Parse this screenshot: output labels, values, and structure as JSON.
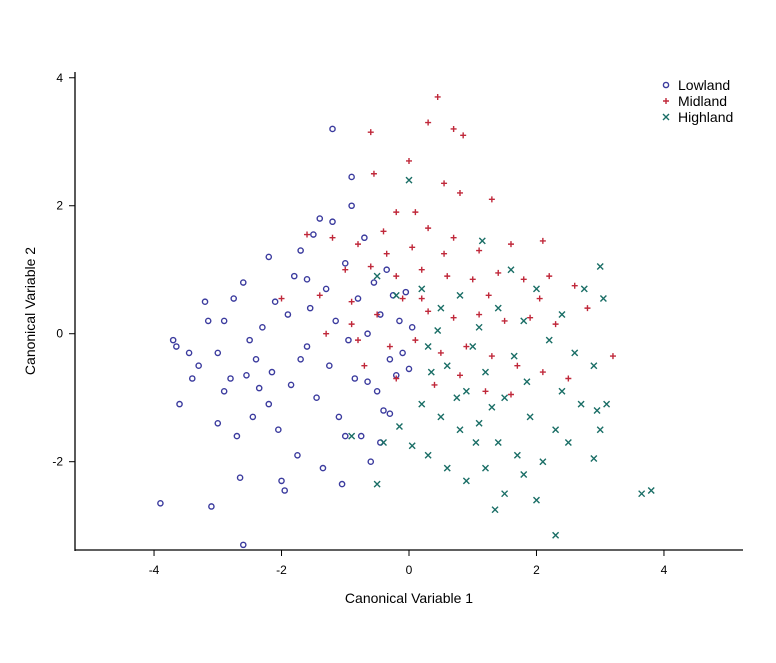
{
  "chart_data": {
    "type": "scatter",
    "title": "",
    "xlabel": "Canonical Variable 1",
    "ylabel": "Canonical Variable 2",
    "xlim": [
      -5.24,
      5.24
    ],
    "ylim": [
      -3.38,
      4.09
    ],
    "xticks": [
      -4,
      -2,
      0,
      2,
      4
    ],
    "yticks": [
      -2,
      0,
      2,
      4
    ],
    "grid": false,
    "legend_position": "top-right",
    "series": [
      {
        "name": "Lowland",
        "marker": "circle",
        "color": "#3b3b9e",
        "points": [
          [
            -3.9,
            -2.65
          ],
          [
            -3.1,
            -2.7
          ],
          [
            -2.6,
            -3.3
          ],
          [
            -1.2,
            3.2
          ],
          [
            -0.9,
            2.45
          ],
          [
            -3.7,
            -0.1
          ],
          [
            -3.65,
            -0.2
          ],
          [
            -3.6,
            -1.1
          ],
          [
            -3.4,
            -0.7
          ],
          [
            -3.3,
            -0.5
          ],
          [
            -3.2,
            0.5
          ],
          [
            -3.15,
            0.2
          ],
          [
            -3.0,
            -0.3
          ],
          [
            -3.0,
            -1.4
          ],
          [
            -2.9,
            -0.9
          ],
          [
            -2.8,
            -0.7
          ],
          [
            -2.75,
            0.55
          ],
          [
            -2.7,
            -1.6
          ],
          [
            -2.65,
            -2.25
          ],
          [
            -2.6,
            0.8
          ],
          [
            -2.5,
            -0.1
          ],
          [
            -2.45,
            -1.3
          ],
          [
            -2.4,
            -0.4
          ],
          [
            -2.3,
            0.1
          ],
          [
            -2.2,
            1.2
          ],
          [
            -2.15,
            -0.6
          ],
          [
            -2.1,
            0.5
          ],
          [
            -2.05,
            -1.5
          ],
          [
            -2.0,
            -2.3
          ],
          [
            -1.95,
            -2.45
          ],
          [
            -1.9,
            0.3
          ],
          [
            -1.85,
            -0.8
          ],
          [
            -1.8,
            0.9
          ],
          [
            -1.75,
            -1.9
          ],
          [
            -1.7,
            1.3
          ],
          [
            -1.6,
            -0.2
          ],
          [
            -1.55,
            0.4
          ],
          [
            -1.5,
            1.55
          ],
          [
            -1.45,
            -1.0
          ],
          [
            -1.4,
            1.8
          ],
          [
            -1.35,
            -2.1
          ],
          [
            -1.3,
            0.7
          ],
          [
            -1.25,
            -0.5
          ],
          [
            -1.2,
            1.75
          ],
          [
            -1.15,
            0.2
          ],
          [
            -1.1,
            -1.3
          ],
          [
            -1.05,
            -2.35
          ],
          [
            -1.0,
            1.1
          ],
          [
            -0.95,
            -0.1
          ],
          [
            -0.9,
            2.0
          ],
          [
            -0.85,
            -0.7
          ],
          [
            -0.8,
            0.55
          ],
          [
            -0.75,
            -1.6
          ],
          [
            -0.7,
            1.5
          ],
          [
            -0.65,
            0.0
          ],
          [
            -0.6,
            -2.0
          ],
          [
            -0.55,
            0.8
          ],
          [
            -0.5,
            -0.9
          ],
          [
            -0.45,
            0.3
          ],
          [
            -0.4,
            -1.2
          ],
          [
            -0.35,
            1.0
          ],
          [
            -0.3,
            -0.4
          ],
          [
            -0.25,
            0.6
          ],
          [
            -0.2,
            -0.65
          ],
          [
            -0.15,
            0.2
          ],
          [
            -0.1,
            -0.3
          ],
          [
            -0.05,
            0.65
          ],
          [
            0.0,
            -0.55
          ],
          [
            0.05,
            0.1
          ],
          [
            -0.45,
            -1.7
          ],
          [
            -2.9,
            0.2
          ],
          [
            -3.45,
            -0.3
          ],
          [
            -2.35,
            -0.85
          ],
          [
            -1.7,
            -0.4
          ],
          [
            -2.55,
            -0.65
          ],
          [
            -0.65,
            -0.75
          ],
          [
            -1.0,
            -1.6
          ],
          [
            -0.3,
            -1.25
          ],
          [
            -1.6,
            0.85
          ],
          [
            -2.2,
            -1.1
          ]
        ]
      },
      {
        "name": "Midland",
        "marker": "plus",
        "color": "#c0283a",
        "points": [
          [
            0.45,
            3.7
          ],
          [
            0.3,
            3.3
          ],
          [
            0.7,
            3.2
          ],
          [
            -0.6,
            3.15
          ],
          [
            0.85,
            3.1
          ],
          [
            0.0,
            2.7
          ],
          [
            0.55,
            2.35
          ],
          [
            -0.55,
            2.5
          ],
          [
            0.8,
            2.2
          ],
          [
            1.3,
            2.1
          ],
          [
            -0.2,
            1.9
          ],
          [
            0.1,
            1.9
          ],
          [
            -1.6,
            1.55
          ],
          [
            -1.2,
            1.5
          ],
          [
            -0.8,
            1.4
          ],
          [
            -0.4,
            1.6
          ],
          [
            0.3,
            1.65
          ],
          [
            0.7,
            1.5
          ],
          [
            1.1,
            1.3
          ],
          [
            1.6,
            1.4
          ],
          [
            2.1,
            1.45
          ],
          [
            -1.0,
            1.0
          ],
          [
            -0.6,
            1.05
          ],
          [
            -0.2,
            0.9
          ],
          [
            0.2,
            1.0
          ],
          [
            0.6,
            0.9
          ],
          [
            1.0,
            0.85
          ],
          [
            1.4,
            0.95
          ],
          [
            1.8,
            0.85
          ],
          [
            2.2,
            0.9
          ],
          [
            2.6,
            0.75
          ],
          [
            -1.4,
            0.6
          ],
          [
            -0.9,
            0.5
          ],
          [
            -0.5,
            0.3
          ],
          [
            -0.1,
            0.55
          ],
          [
            0.3,
            0.35
          ],
          [
            0.7,
            0.25
          ],
          [
            1.1,
            0.3
          ],
          [
            1.5,
            0.2
          ],
          [
            1.9,
            0.25
          ],
          [
            2.3,
            0.15
          ],
          [
            2.8,
            0.4
          ],
          [
            3.2,
            -0.35
          ],
          [
            -1.3,
            0.0
          ],
          [
            -0.8,
            -0.1
          ],
          [
            -0.3,
            -0.2
          ],
          [
            0.1,
            -0.1
          ],
          [
            0.5,
            -0.3
          ],
          [
            0.9,
            -0.2
          ],
          [
            1.3,
            -0.35
          ],
          [
            1.7,
            -0.5
          ],
          [
            2.1,
            -0.6
          ],
          [
            2.5,
            -0.7
          ],
          [
            -0.7,
            -0.5
          ],
          [
            -0.2,
            -0.7
          ],
          [
            0.4,
            -0.8
          ],
          [
            0.8,
            -0.65
          ],
          [
            1.2,
            -0.9
          ],
          [
            1.6,
            -0.95
          ],
          [
            -2.0,
            0.55
          ],
          [
            -0.9,
            0.15
          ],
          [
            0.2,
            0.55
          ],
          [
            1.25,
            0.6
          ],
          [
            0.05,
            1.35
          ],
          [
            -0.35,
            1.25
          ],
          [
            0.55,
            1.25
          ],
          [
            2.05,
            0.55
          ]
        ]
      },
      {
        "name": "Highland",
        "marker": "x",
        "color": "#1a6e66",
        "points": [
          [
            3.8,
            -2.45
          ],
          [
            3.65,
            -2.5
          ],
          [
            2.3,
            -3.15
          ],
          [
            1.35,
            -2.75
          ],
          [
            3.0,
            1.05
          ],
          [
            0.0,
            2.4
          ],
          [
            1.15,
            1.45
          ],
          [
            1.6,
            1.0
          ],
          [
            2.0,
            0.7
          ],
          [
            2.4,
            0.3
          ],
          [
            2.75,
            0.7
          ],
          [
            3.05,
            0.55
          ],
          [
            -0.5,
            0.9
          ],
          [
            -0.2,
            0.6
          ],
          [
            0.2,
            0.7
          ],
          [
            0.5,
            0.4
          ],
          [
            0.8,
            0.6
          ],
          [
            1.1,
            0.1
          ],
          [
            1.4,
            0.4
          ],
          [
            1.8,
            0.2
          ],
          [
            2.2,
            -0.1
          ],
          [
            2.6,
            -0.3
          ],
          [
            2.9,
            -0.5
          ],
          [
            3.1,
            -1.1
          ],
          [
            2.95,
            -1.2
          ],
          [
            0.3,
            -0.2
          ],
          [
            0.6,
            -0.5
          ],
          [
            0.9,
            -0.9
          ],
          [
            1.2,
            -0.6
          ],
          [
            1.5,
            -1.0
          ],
          [
            1.9,
            -1.3
          ],
          [
            2.3,
            -1.5
          ],
          [
            2.7,
            -1.1
          ],
          [
            3.0,
            -1.5
          ],
          [
            0.2,
            -1.1
          ],
          [
            0.5,
            -1.3
          ],
          [
            0.8,
            -1.5
          ],
          [
            1.1,
            -1.4
          ],
          [
            1.4,
            -1.7
          ],
          [
            1.7,
            -1.9
          ],
          [
            2.1,
            -2.0
          ],
          [
            2.5,
            -1.7
          ],
          [
            2.9,
            -1.95
          ],
          [
            0.3,
            -1.9
          ],
          [
            0.6,
            -2.1
          ],
          [
            0.9,
            -2.3
          ],
          [
            1.2,
            -2.1
          ],
          [
            1.5,
            -2.5
          ],
          [
            1.8,
            -2.2
          ],
          [
            2.0,
            -2.6
          ],
          [
            -0.4,
            -1.7
          ],
          [
            -0.9,
            -1.6
          ],
          [
            -0.5,
            -2.35
          ],
          [
            0.05,
            -1.75
          ],
          [
            -0.15,
            -1.45
          ],
          [
            1.0,
            -0.2
          ],
          [
            1.3,
            -1.15
          ],
          [
            1.65,
            -0.35
          ],
          [
            0.45,
            0.05
          ],
          [
            0.75,
            -1.0
          ],
          [
            1.05,
            -1.7
          ],
          [
            1.85,
            -0.75
          ],
          [
            0.35,
            -0.6
          ],
          [
            2.4,
            -0.9
          ]
        ]
      }
    ]
  }
}
